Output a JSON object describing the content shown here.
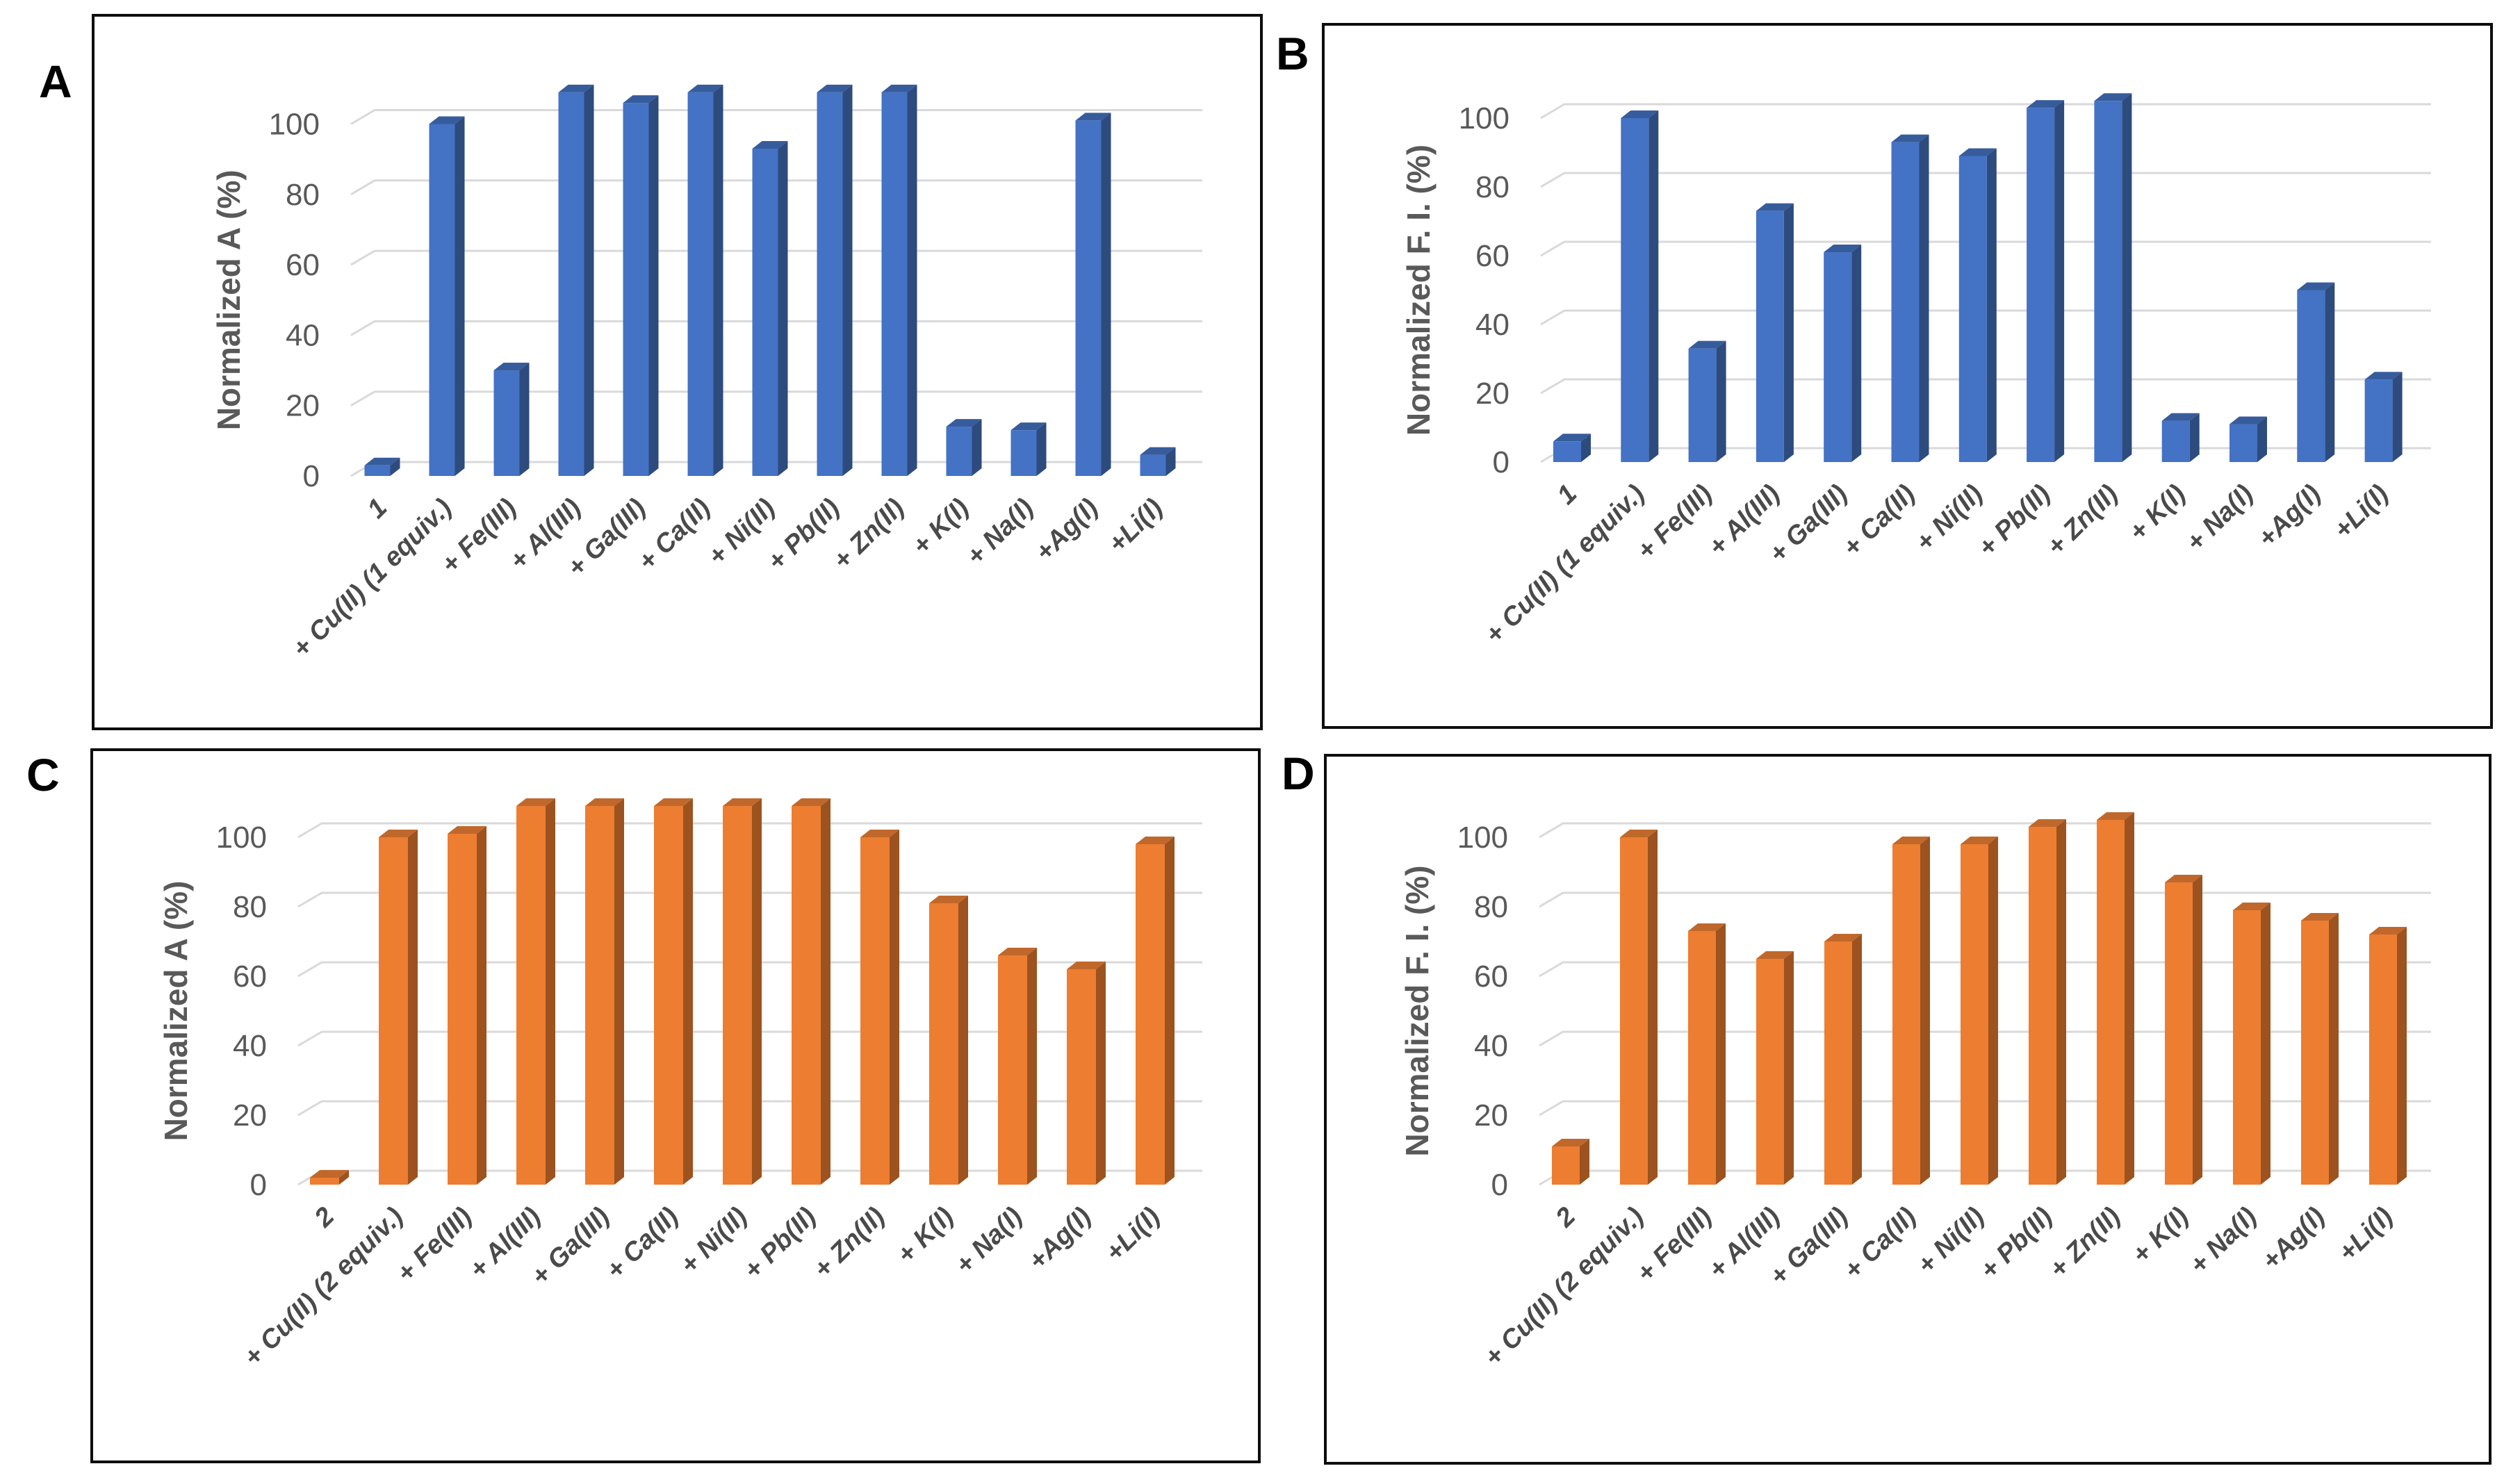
{
  "figure": {
    "background": "#ffffff",
    "panel_border_color": "#0d0d0d",
    "gridline_color": "#d9d9d9",
    "axis_text_color": "#595959",
    "category_text_color": "#4a4a4a"
  },
  "chart_data": [
    {
      "panel_label": "A",
      "type": "bar",
      "title": "",
      "xlabel": "",
      "ylabel": "Normalized A (%)",
      "ylim": [
        0,
        112
      ],
      "yticks": [
        0,
        20,
        40,
        60,
        80,
        100
      ],
      "grid": true,
      "legend": false,
      "bar_color": "#4472C4",
      "bar_side_color": "#2D4B7D",
      "bar_top_color": "#365C9C",
      "categories": [
        "1",
        "+ Cu(II) (1 equiv.)",
        "+ Fe(III)",
        "+ Al(III)",
        "+ Ga(III)",
        "+ Ca(II)",
        "+ Ni(II)",
        "+ Pb(II)",
        "+ Zn(II)",
        "+ K(I)",
        "+ Na(I)",
        "+Ag(I)",
        "+Li(I)"
      ],
      "values": [
        3,
        100,
        30,
        109,
        106,
        109,
        93,
        109,
        109,
        14,
        13,
        101,
        6
      ]
    },
    {
      "panel_label": "B",
      "type": "bar",
      "title": "",
      "xlabel": "",
      "ylabel": "Normalized F. I. (%)",
      "ylim": [
        0,
        112
      ],
      "yticks": [
        0,
        20,
        40,
        60,
        80,
        100
      ],
      "grid": true,
      "legend": false,
      "bar_color": "#4472C4",
      "bar_side_color": "#2D4B7D",
      "bar_top_color": "#365C9C",
      "categories": [
        "1",
        "+ Cu(II) (1 equiv.)",
        "+ Fe(III)",
        "+ Al(III)",
        "+ Ga(III)",
        "+ Ca(II)",
        "+ Ni(II)",
        "+ Pb(II)",
        "+ Zn(II)",
        "+ K(I)",
        "+ Na(I)",
        "+Ag(I)",
        "+Li(I)"
      ],
      "values": [
        6,
        100,
        33,
        73,
        61,
        93,
        89,
        103,
        105,
        12,
        11,
        50,
        24
      ]
    },
    {
      "panel_label": "C",
      "type": "bar",
      "title": "",
      "xlabel": "",
      "ylabel": "Normalized A (%)",
      "ylim": [
        0,
        112
      ],
      "yticks": [
        0,
        20,
        40,
        60,
        80,
        100
      ],
      "grid": true,
      "legend": false,
      "bar_color": "#ED7D31",
      "bar_side_color": "#9C531F",
      "bar_top_color": "#C0682B",
      "categories": [
        "2",
        "+ Cu(II) (2 equiv.)",
        "+ Fe(III)",
        "+ Al(III)",
        "+ Ga(III)",
        "+ Ca(II)",
        "+ Ni(II)",
        "+ Pb(II)",
        "+ Zn(II)",
        "+ K(I)",
        "+ Na(I)",
        "+Ag(I)",
        "+Li(I)"
      ],
      "values": [
        2,
        100,
        101,
        109,
        109,
        109,
        109,
        109,
        100,
        81,
        66,
        62,
        98
      ]
    },
    {
      "panel_label": "D",
      "type": "bar",
      "title": "",
      "xlabel": "",
      "ylabel": "Normalized F. I. (%)",
      "ylim": [
        0,
        112
      ],
      "yticks": [
        0,
        20,
        40,
        60,
        80,
        100
      ],
      "grid": true,
      "legend": false,
      "bar_color": "#ED7D31",
      "bar_side_color": "#9C531F",
      "bar_top_color": "#C0682B",
      "categories": [
        "2",
        "+ Cu(II) (2 equiv.)",
        "+ Fe(III)",
        "+ Al(III)",
        "+ Ga(III)",
        "+ Ca(II)",
        "+ Ni(II)",
        "+ Pb(II)",
        "+ Zn(II)",
        "+ K(I)",
        "+ Na(I)",
        "+Ag(I)",
        "+Li(I)"
      ],
      "values": [
        11,
        100,
        73,
        65,
        70,
        98,
        98,
        103,
        105,
        87,
        79,
        76,
        72
      ]
    }
  ]
}
